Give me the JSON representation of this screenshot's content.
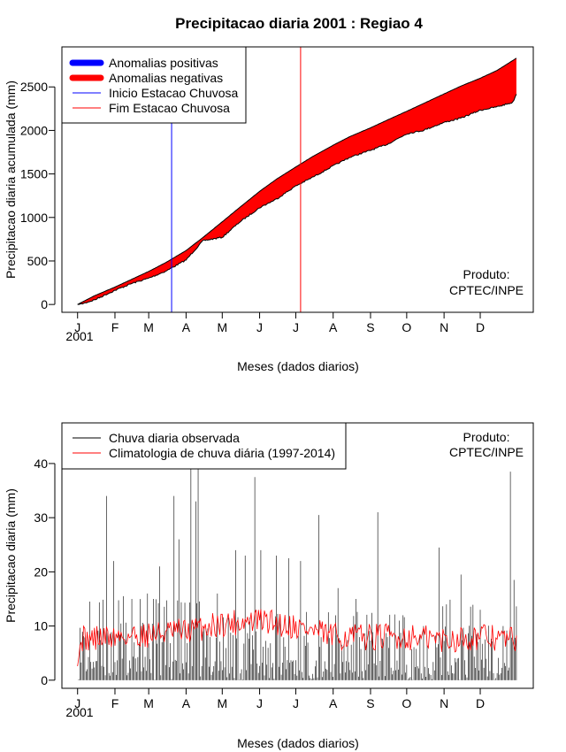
{
  "title": "Precipitacao diaria 2001 : Regiao 4",
  "colors": {
    "positive": "#0000ff",
    "negative": "#ff0000",
    "onset": "#0000ff",
    "end": "#ff0000",
    "observed": "#000000",
    "climatology": "#ff0000"
  },
  "chart_data": [
    {
      "type": "area",
      "ylabel": "Precipitacao diaria acumulada (mm)",
      "xlabel": "Meses (dados diarios)",
      "x_tick_labels": [
        "J",
        "F",
        "M",
        "A",
        "M",
        "J",
        "J",
        "A",
        "S",
        "O",
        "N",
        "D"
      ],
      "year_label": "2001",
      "y_ticks": [
        0,
        500,
        1000,
        1500,
        2000,
        2500
      ],
      "ylim": [
        -90,
        2960
      ],
      "xlim_days": [
        -13,
        378
      ],
      "legend": [
        {
          "label": "Anomalias positivas",
          "style": "thick",
          "color": "#0000ff"
        },
        {
          "label": "Anomalias negativas",
          "style": "thick",
          "color": "#ff0000"
        },
        {
          "label": "Inicio Estacao Chuvosa",
          "style": "thin",
          "color": "#0000ff"
        },
        {
          "label": "Fim Estacao Chuvosa",
          "style": "thin",
          "color": "#ff0000"
        }
      ],
      "legend_position": "top-left",
      "product_note": [
        "Produto:",
        "CPTEC/INPE"
      ],
      "onset_date": "2001-03-20",
      "end_date": "2001-07-05",
      "series": [
        {
          "name": "climatology",
          "x_dates": [
            "2001-01-01",
            "2001-01-15",
            "2001-02-01",
            "2001-02-15",
            "2001-03-01",
            "2001-03-15",
            "2001-04-01",
            "2001-04-15",
            "2001-05-01",
            "2001-05-15",
            "2001-06-01",
            "2001-06-15",
            "2001-07-01",
            "2001-07-15",
            "2001-08-01",
            "2001-08-15",
            "2001-09-01",
            "2001-09-15",
            "2001-10-01",
            "2001-10-15",
            "2001-11-01",
            "2001-11-15",
            "2001-12-01",
            "2001-12-15",
            "2001-12-31"
          ],
          "values": [
            0,
            100,
            200,
            290,
            380,
            480,
            620,
            770,
            950,
            1110,
            1300,
            1440,
            1580,
            1700,
            1830,
            1930,
            2030,
            2120,
            2220,
            2310,
            2420,
            2510,
            2600,
            2690,
            2830
          ]
        },
        {
          "name": "observed",
          "x_dates": [
            "2001-01-01",
            "2001-01-15",
            "2001-02-01",
            "2001-02-15",
            "2001-03-01",
            "2001-03-15",
            "2001-04-01",
            "2001-04-15",
            "2001-05-01",
            "2001-05-15",
            "2001-06-01",
            "2001-06-15",
            "2001-07-01",
            "2001-07-15",
            "2001-08-01",
            "2001-08-15",
            "2001-09-01",
            "2001-09-15",
            "2001-10-01",
            "2001-10-15",
            "2001-11-01",
            "2001-11-15",
            "2001-12-01",
            "2001-12-15",
            "2001-12-28",
            "2001-12-31"
          ],
          "values": [
            0,
            60,
            170,
            250,
            310,
            390,
            520,
            740,
            780,
            950,
            1120,
            1220,
            1370,
            1470,
            1600,
            1700,
            1780,
            1850,
            1970,
            2010,
            2100,
            2150,
            2240,
            2280,
            2330,
            2430
          ]
        }
      ]
    },
    {
      "type": "line",
      "ylabel": "Precipitacao diaria (mm)",
      "xlabel": "Meses (dados diarios)",
      "x_tick_labels": [
        "J",
        "F",
        "M",
        "A",
        "M",
        "J",
        "J",
        "A",
        "S",
        "O",
        "N",
        "D"
      ],
      "year_label": "2001",
      "y_ticks": [
        0,
        10,
        20,
        30,
        40
      ],
      "ylim": [
        -1.5,
        47.5
      ],
      "xlim_days": [
        -13,
        378
      ],
      "legend": [
        {
          "label": "Chuva diaria observada",
          "color": "#000000"
        },
        {
          "label": "Climatologia de chuva diária (1997-2014)",
          "color": "#ff0000"
        }
      ],
      "legend_position": "top-left",
      "product_note": [
        "Produto:",
        "CPTEC/INPE"
      ],
      "series": [
        {
          "name": "Chuva diaria observada",
          "style": "vertical-bars",
          "peaks": [
            {
              "date": "2001-01-25",
              "value": 34
            },
            {
              "date": "2001-01-31",
              "value": 22
            },
            {
              "date": "2001-02-08",
              "value": 15.5
            },
            {
              "date": "2001-02-15",
              "value": 15
            },
            {
              "date": "2001-02-28",
              "value": 16
            },
            {
              "date": "2001-03-05",
              "value": 15
            },
            {
              "date": "2001-03-10",
              "value": 21
            },
            {
              "date": "2001-03-22",
              "value": 34
            },
            {
              "date": "2001-03-26",
              "value": 26
            },
            {
              "date": "2001-04-05",
              "value": 39.5
            },
            {
              "date": "2001-04-09",
              "value": 33
            },
            {
              "date": "2001-04-11",
              "value": 39.5
            },
            {
              "date": "2001-04-27",
              "value": 16
            },
            {
              "date": "2001-05-12",
              "value": 24
            },
            {
              "date": "2001-05-20",
              "value": 23
            },
            {
              "date": "2001-05-28",
              "value": 37.5
            },
            {
              "date": "2001-06-02",
              "value": 24
            },
            {
              "date": "2001-06-15",
              "value": 23
            },
            {
              "date": "2001-06-25",
              "value": 22.5
            },
            {
              "date": "2001-07-05",
              "value": 22
            },
            {
              "date": "2001-07-20",
              "value": 30.5
            },
            {
              "date": "2001-08-05",
              "value": 17
            },
            {
              "date": "2001-08-20",
              "value": 15
            },
            {
              "date": "2001-09-07",
              "value": 31
            },
            {
              "date": "2001-09-25",
              "value": 11
            },
            {
              "date": "2001-10-15",
              "value": 10
            },
            {
              "date": "2001-10-28",
              "value": 24.5
            },
            {
              "date": "2001-11-15",
              "value": 19.5
            },
            {
              "date": "2001-12-01",
              "value": 13
            },
            {
              "date": "2001-12-20",
              "value": 10
            },
            {
              "date": "2001-12-26",
              "value": 38.5
            },
            {
              "date": "2001-12-29",
              "value": 18.5
            }
          ]
        },
        {
          "name": "Climatologia de chuva diária (1997-2014)",
          "style": "line",
          "x_dates": [
            "2001-01-01",
            "2001-02-01",
            "2001-03-01",
            "2001-04-01",
            "2001-05-01",
            "2001-06-01",
            "2001-07-01",
            "2001-08-01",
            "2001-09-01",
            "2001-10-01",
            "2001-11-01",
            "2001-12-01",
            "2001-12-31"
          ],
          "values": [
            7.5,
            8,
            8.5,
            9,
            10.5,
            11,
            10,
            8,
            8,
            8,
            7.5,
            8,
            7.5
          ]
        }
      ]
    }
  ]
}
